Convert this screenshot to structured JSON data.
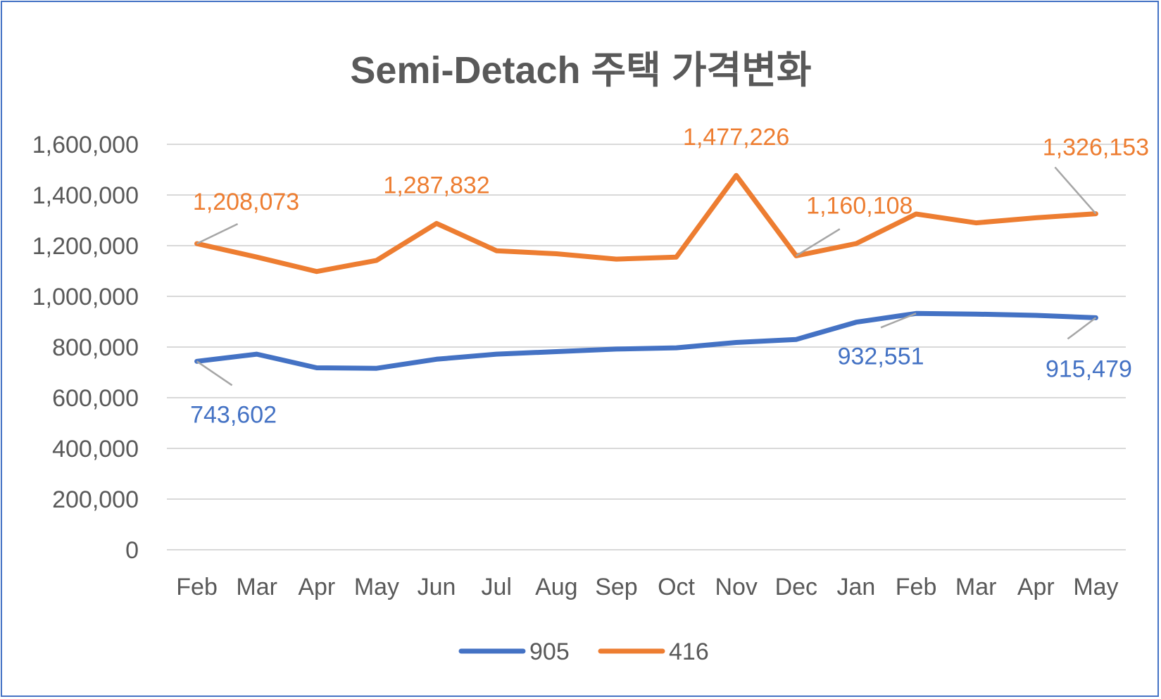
{
  "chart_data": {
    "type": "line",
    "title": "Semi-Detach 주택 가격변화",
    "xlabel": "",
    "ylabel": "",
    "ylim": [
      0,
      1600000
    ],
    "yticks": [
      0,
      200000,
      400000,
      600000,
      800000,
      1000000,
      1200000,
      1400000,
      1600000
    ],
    "ytick_labels": [
      "0",
      "200,000",
      "400,000",
      "600,000",
      "800,000",
      "1,000,000",
      "1,200,000",
      "1,400,000",
      "1,600,000"
    ],
    "grid": true,
    "legend_position": "bottom",
    "categories": [
      "Feb",
      "Mar",
      "Apr",
      "May",
      "Jun",
      "Jul",
      "Aug",
      "Sep",
      "Oct",
      "Nov",
      "Dec",
      "Jan",
      "Feb",
      "Mar",
      "Apr",
      "May"
    ],
    "series": [
      {
        "name": "905",
        "color": "#4472C4",
        "values": [
          743602,
          772000,
          718000,
          716000,
          752000,
          772000,
          782000,
          792000,
          797000,
          818000,
          830000,
          898000,
          932551,
          930000,
          925000,
          915479
        ]
      },
      {
        "name": "416",
        "color": "#ED7D31",
        "values": [
          1208073,
          1155000,
          1098000,
          1142000,
          1287832,
          1180000,
          1168000,
          1147000,
          1155000,
          1477226,
          1160108,
          1208000,
          1325000,
          1290000,
          1310000,
          1326153
        ]
      }
    ],
    "annotations": [
      {
        "series": 1,
        "index": 0,
        "text": "1,208,073"
      },
      {
        "series": 1,
        "index": 4,
        "text": "1,287,832"
      },
      {
        "series": 1,
        "index": 9,
        "text": "1,477,226"
      },
      {
        "series": 1,
        "index": 10,
        "text": "1,160,108"
      },
      {
        "series": 1,
        "index": 15,
        "text": "1,326,153"
      },
      {
        "series": 0,
        "index": 0,
        "text": "743,602"
      },
      {
        "series": 0,
        "index": 12,
        "text": "932,551"
      },
      {
        "series": 0,
        "index": 15,
        "text": "915,479"
      }
    ]
  }
}
